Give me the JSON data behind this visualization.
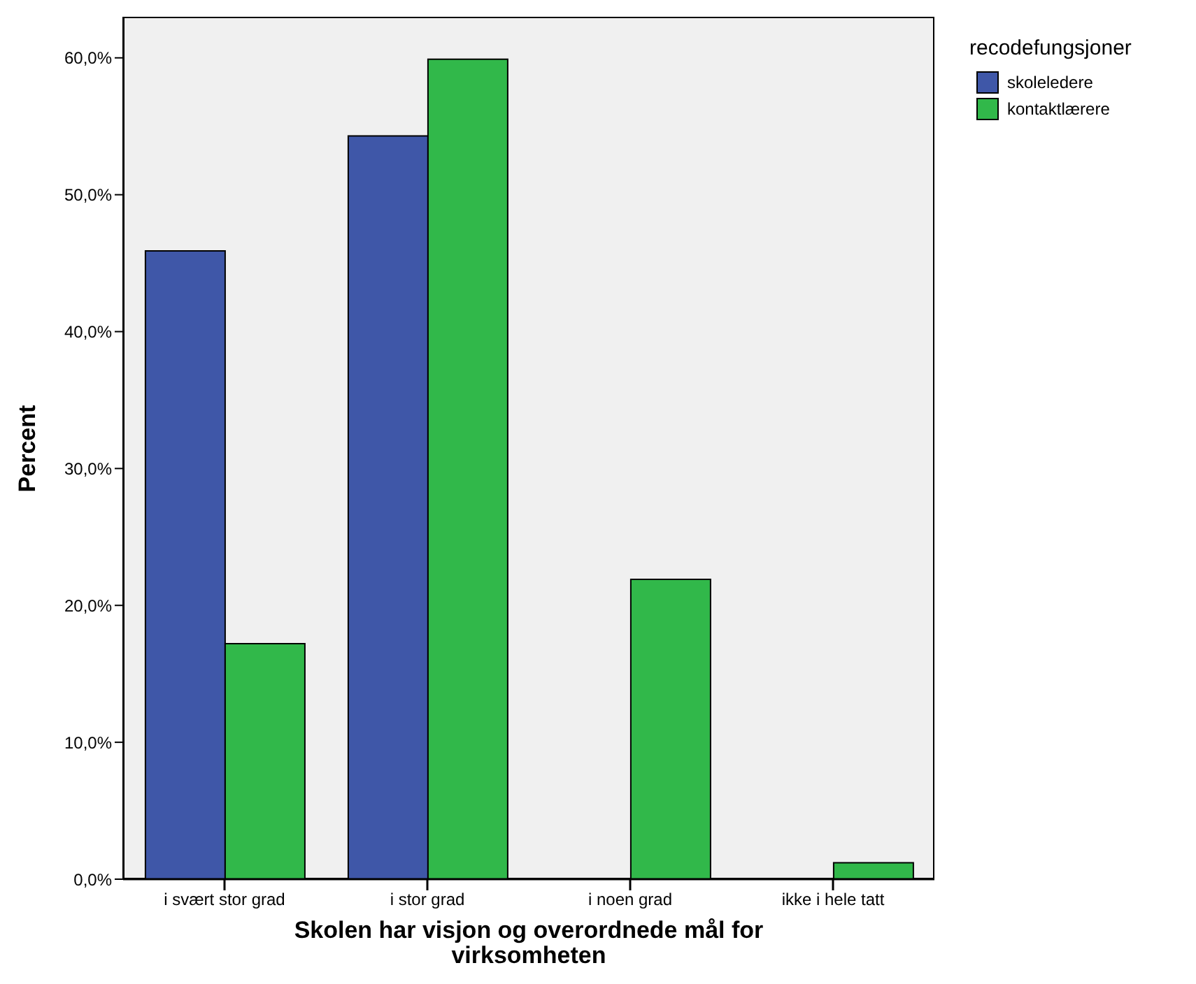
{
  "chart_data": {
    "type": "bar",
    "categories": [
      "i svært stor grad",
      "i stor grad",
      "i noen grad",
      "ikke i hele tatt"
    ],
    "series": [
      {
        "name": "skoleledere",
        "color": "#3f57a8",
        "values": [
          45.9,
          54.3,
          0,
          0
        ]
      },
      {
        "name": "kontaktlærere",
        "color": "#31b84a",
        "values": [
          17.2,
          59.9,
          21.9,
          1.2
        ]
      }
    ],
    "xlabel": "Skolen har visjon og overordnede mål for virksomheten",
    "ylabel": "Percent",
    "legend_title": "recodefungsjoner",
    "legend": "top right",
    "ylim": [
      0,
      63
    ],
    "yticks": [
      {
        "value": 0,
        "label": "0,0%"
      },
      {
        "value": 10,
        "label": "10,0%"
      },
      {
        "value": 20,
        "label": "20,0%"
      },
      {
        "value": 30,
        "label": "30,0%"
      },
      {
        "value": 40,
        "label": "40,0%"
      },
      {
        "value": 50,
        "label": "50,0%"
      },
      {
        "value": 60,
        "label": "60,0%"
      }
    ]
  }
}
